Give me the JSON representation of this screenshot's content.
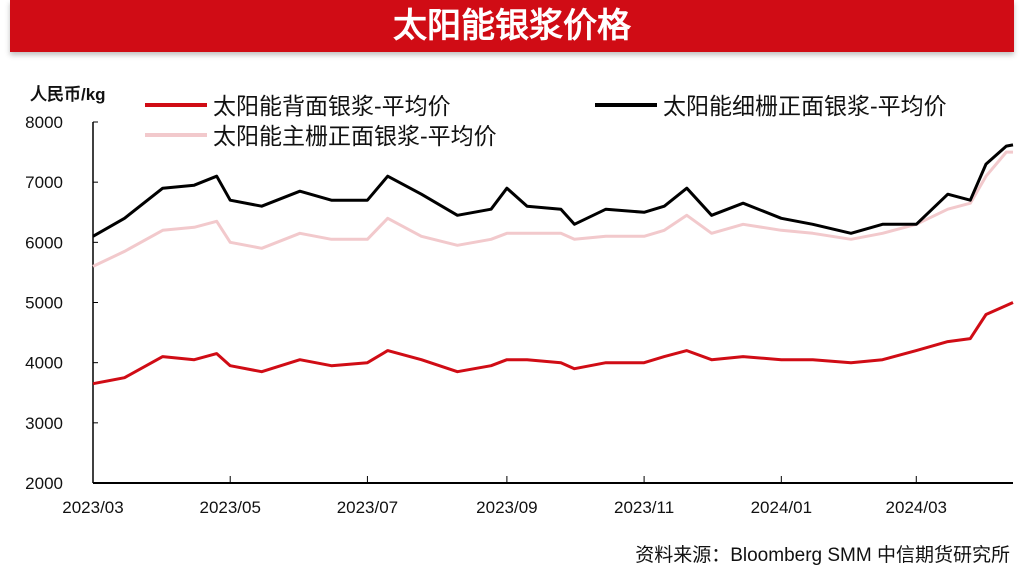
{
  "chart_data": {
    "type": "line",
    "title": "太阳能银浆价格",
    "ylabel": "人民币/kg",
    "ylim": [
      2000,
      8000
    ],
    "yticks": [
      "2000",
      "3000",
      "4000",
      "5000",
      "6000",
      "7000",
      "8000"
    ],
    "xlim": [
      "2023-03-01",
      "2024-04-13"
    ],
    "xticks": [
      "2023/03",
      "2023/05",
      "2023/07",
      "2023/09",
      "2023/11",
      "2024/01",
      "2024/03"
    ],
    "grid": false,
    "legend_position": "top",
    "x": [
      "2023-03-01",
      "2023-03-15",
      "2023-04-01",
      "2023-04-15",
      "2023-04-25",
      "2023-05-01",
      "2023-05-15",
      "2023-06-01",
      "2023-06-15",
      "2023-07-01",
      "2023-07-10",
      "2023-07-25",
      "2023-08-10",
      "2023-08-25",
      "2023-09-01",
      "2023-09-10",
      "2023-09-25",
      "2023-10-01",
      "2023-10-15",
      "2023-11-01",
      "2023-11-10",
      "2023-11-20",
      "2023-12-01",
      "2023-12-15",
      "2024-01-01",
      "2024-01-15",
      "2024-02-01",
      "2024-02-15",
      "2024-03-01",
      "2024-03-15",
      "2024-03-25",
      "2024-04-01",
      "2024-04-10",
      "2024-04-13"
    ],
    "series": [
      {
        "name": "太阳能背面银浆-平均价",
        "color": "#d00c15",
        "values": [
          3650,
          3750,
          4100,
          4050,
          4150,
          3950,
          3850,
          4050,
          3950,
          4000,
          4200,
          4050,
          3850,
          3950,
          4050,
          4050,
          4000,
          3900,
          4000,
          4000,
          4100,
          4200,
          4050,
          4100,
          4050,
          4050,
          4000,
          4050,
          4200,
          4350,
          4400,
          4800,
          4950,
          5000
        ]
      },
      {
        "name": "太阳能细栅正面银浆-平均价",
        "color": "#000000",
        "values": [
          6100,
          6400,
          6900,
          6950,
          7100,
          6700,
          6600,
          6850,
          6700,
          6700,
          7100,
          6800,
          6450,
          6550,
          6900,
          6600,
          6550,
          6300,
          6550,
          6500,
          6600,
          6900,
          6450,
          6650,
          6400,
          6300,
          6150,
          6300,
          6300,
          6800,
          6700,
          7300,
          7600,
          7620
        ]
      },
      {
        "name": "太阳能主栅正面银浆-平均价",
        "color": "#f2c9cc",
        "values": [
          5600,
          5850,
          6200,
          6250,
          6350,
          6000,
          5900,
          6150,
          6050,
          6050,
          6400,
          6100,
          5950,
          6050,
          6150,
          6150,
          6150,
          6050,
          6100,
          6100,
          6200,
          6450,
          6150,
          6300,
          6200,
          6150,
          6050,
          6150,
          6300,
          6550,
          6650,
          7100,
          7500,
          7500
        ]
      }
    ]
  },
  "source": "资料来源：Bloomberg SMM 中信期货研究所"
}
